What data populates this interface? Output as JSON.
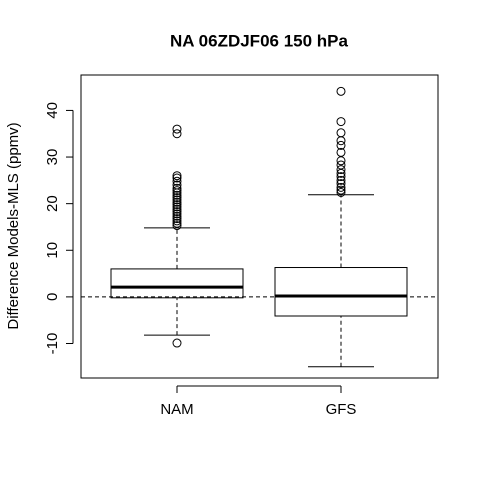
{
  "chart_data": {
    "type": "box",
    "title": "NA 06ZDJF06 150 hPa",
    "ylabel": "Difference Models-MLS (ppmv)",
    "categories": [
      "NAM",
      "GFS"
    ],
    "boxes": [
      {
        "whislo": -8.2,
        "q1": -0.2,
        "med": 2.1,
        "q3": 6.0,
        "whishi": 14.8,
        "outliers": [
          -9.9,
          15.3,
          15.8,
          16.3,
          16.8,
          17.3,
          17.8,
          18.3,
          18.8,
          19.3,
          19.8,
          20.3,
          20.8,
          21.3,
          21.8,
          22.3,
          22.8,
          23.3,
          24.0,
          24.8,
          25.5,
          26.0,
          35.0,
          36.0
        ]
      },
      {
        "whislo": -15.0,
        "q1": -4.1,
        "med": 0.2,
        "q3": 6.3,
        "whishi": 21.9,
        "outliers": [
          22.4,
          22.9,
          23.5,
          24.3,
          25.0,
          25.8,
          26.5,
          27.3,
          28.3,
          29.2,
          31.0,
          32.5,
          33.5,
          35.2,
          37.6,
          44.1
        ]
      }
    ],
    "reference_line": 0,
    "ylim": [
      -17.4,
      47.6
    ],
    "yticks": [
      -10,
      0,
      10,
      20,
      30,
      40
    ]
  }
}
